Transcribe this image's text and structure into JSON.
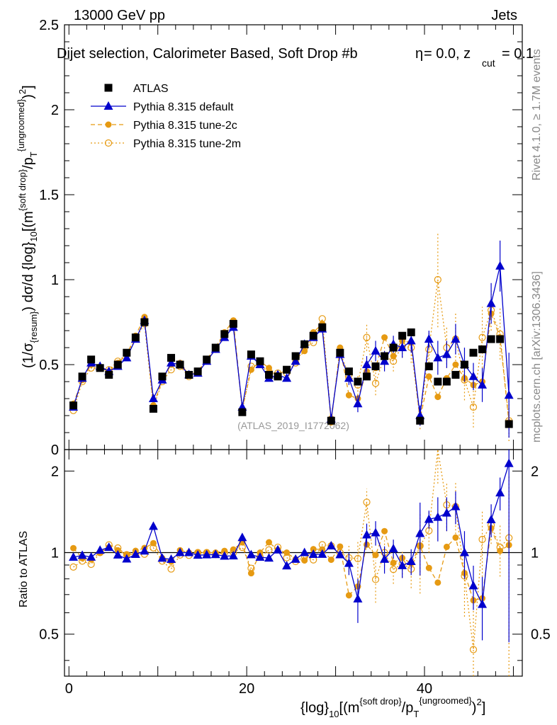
{
  "header": {
    "energy": "13000 GeV pp",
    "process": "Jets",
    "selection": "Dijet selection, Calorimeter Based, Soft Drop #b",
    "params_beta": "= 0.0, z",
    "params_sub": "cut",
    "params_val": "= 0.1",
    "beta_symbol": "η"
  },
  "side_labels": {
    "rivet": "Rivet 4.1.0, ≥ 1.7M events",
    "mcplots": "mcplots.cern.ch [arXiv:1306.3436]"
  },
  "watermark": "(ATLAS_2019_I1772062)",
  "axes": {
    "main_ylabel": "(1/σ{resum}) dσ/d {log}10[(m{soft drop}/pT{ungroomed})²]",
    "ratio_ylabel": "Ratio to ATLAS",
    "xlabel": "{log}10[(m{soft drop}/pT{ungroomed})²]",
    "main_yticks": [
      "0",
      "0.5",
      "1",
      "1.5",
      "2",
      "2.5"
    ],
    "ratio_yticks": [
      "0.5",
      "1",
      "2"
    ],
    "xticks": [
      "0",
      "20",
      "40"
    ]
  },
  "legend": [
    {
      "label": "ATLAS",
      "marker": "square",
      "color": "#000000"
    },
    {
      "label": "Pythia 8.315 default",
      "marker": "triangle",
      "color": "#0000cc"
    },
    {
      "label": "Pythia 8.315 tune-2c",
      "marker": "filled-circle",
      "color": "#e69a12"
    },
    {
      "label": "Pythia 8.315 tune-2m",
      "marker": "open-circle",
      "color": "#e69a12"
    }
  ],
  "chart_data": {
    "type": "scatter",
    "title": "Dijet selection, Calorimeter Based, Soft Drop",
    "xlim": [
      -0.5,
      51
    ],
    "ylim_main": [
      0,
      2.5
    ],
    "ylim_ratio": [
      0.35,
      2.4
    ],
    "x": [
      0.5,
      1.5,
      2.5,
      3.5,
      4.5,
      5.5,
      6.5,
      7.5,
      8.5,
      9.5,
      10.5,
      11.5,
      12.5,
      13.5,
      14.5,
      15.5,
      16.5,
      17.5,
      18.5,
      19.5,
      20.5,
      21.5,
      22.5,
      23.5,
      24.5,
      25.5,
      26.5,
      27.5,
      28.5,
      29.5,
      30.5,
      31.5,
      32.5,
      33.5,
      34.5,
      35.5,
      36.5,
      37.5,
      38.5,
      39.5,
      40.5,
      41.5,
      42.5,
      43.5,
      44.5,
      45.5,
      46.5,
      47.5,
      48.5,
      49.5
    ],
    "series": [
      {
        "name": "ATLAS",
        "values": [
          0.26,
          0.43,
          0.53,
          0.48,
          0.44,
          0.5,
          0.57,
          0.66,
          0.75,
          0.24,
          0.43,
          0.54,
          0.5,
          0.44,
          0.46,
          0.53,
          0.6,
          0.68,
          0.74,
          0.22,
          0.56,
          0.52,
          0.44,
          0.43,
          0.47,
          0.55,
          0.62,
          0.67,
          0.72,
          0.17,
          0.57,
          0.46,
          0.4,
          0.43,
          0.49,
          0.55,
          0.6,
          0.67,
          0.69,
          0.17,
          0.49,
          0.4,
          0.4,
          0.44,
          0.5,
          0.57,
          0.59,
          0.65,
          0.65,
          0.15
        ]
      },
      {
        "name": "Pythia 8.315 default",
        "values": [
          0.25,
          0.42,
          0.51,
          0.49,
          0.46,
          0.49,
          0.54,
          0.65,
          0.76,
          0.3,
          0.41,
          0.51,
          0.5,
          0.44,
          0.45,
          0.52,
          0.59,
          0.66,
          0.72,
          0.25,
          0.55,
          0.5,
          0.42,
          0.44,
          0.42,
          0.52,
          0.62,
          0.66,
          0.71,
          0.18,
          0.56,
          0.42,
          0.27,
          0.5,
          0.58,
          0.52,
          0.62,
          0.6,
          0.64,
          0.2,
          0.65,
          0.54,
          0.56,
          0.65,
          0.5,
          0.43,
          0.38,
          0.86,
          1.08,
          0.32
        ]
      },
      {
        "name": "Pythia 8.315 tune-2c",
        "values": [
          0.27,
          0.41,
          0.5,
          0.48,
          0.46,
          0.51,
          0.56,
          0.67,
          0.78,
          0.26,
          0.41,
          0.5,
          0.51,
          0.44,
          0.46,
          0.53,
          0.6,
          0.69,
          0.76,
          0.24,
          0.47,
          0.52,
          0.48,
          0.44,
          0.47,
          0.52,
          0.58,
          0.69,
          0.74,
          0.16,
          0.6,
          0.32,
          0.3,
          0.46,
          0.48,
          0.66,
          0.55,
          0.64,
          0.63,
          0.18,
          0.43,
          0.31,
          0.42,
          0.5,
          0.42,
          0.38,
          0.4,
          0.8,
          0.66,
          0.16
        ]
      },
      {
        "name": "Pythia 8.315 tune-2m",
        "values": [
          0.23,
          0.4,
          0.48,
          0.48,
          0.47,
          0.52,
          0.56,
          0.65,
          0.74,
          0.25,
          0.4,
          0.47,
          0.49,
          0.43,
          0.46,
          0.53,
          0.59,
          0.68,
          0.74,
          0.23,
          0.49,
          0.5,
          0.45,
          0.45,
          0.45,
          0.51,
          0.6,
          0.63,
          0.77,
          0.18,
          0.57,
          0.44,
          0.38,
          0.66,
          0.39,
          0.55,
          0.52,
          0.61,
          0.6,
          0.18,
          0.59,
          1.0,
          0.6,
          0.65,
          0.41,
          0.25,
          0.66,
          0.82,
          0.68,
          0.17
        ]
      }
    ],
    "errors": [
      {
        "name": "Pythia 8.315 default",
        "indices": [
          31,
          32,
          33,
          34,
          35,
          36,
          37,
          38,
          39,
          40,
          41,
          42,
          43,
          44,
          45,
          46,
          47,
          48,
          49
        ],
        "values": [
          0.04,
          0.05,
          0.05,
          0.06,
          0.06,
          0.05,
          0.06,
          0.07,
          0.06,
          0.05,
          0.1,
          0.08,
          0.09,
          0.1,
          0.08,
          0.1,
          0.12,
          0.15,
          0.25
        ]
      },
      {
        "name": "Pythia 8.315 tune-2m",
        "indices": [
          31,
          32,
          33,
          34,
          35,
          36,
          37,
          38,
          39,
          40,
          41,
          42,
          43,
          44,
          45,
          46,
          47,
          48,
          49
        ],
        "values": [
          0.05,
          0.06,
          0.08,
          0.07,
          0.06,
          0.06,
          0.07,
          0.09,
          0.06,
          0.1,
          0.28,
          0.12,
          0.15,
          0.12,
          0.12,
          0.18,
          0.12,
          0.15,
          0.12
        ]
      }
    ],
    "xlabel": "{log}10[(m{soft drop}/pT{ungroomed})²]",
    "ylabel": "(1/σ{resum}) dσ/d {log}10[(m{soft drop}/pT{ungroomed})²]",
    "ratio_ylabel": "Ratio to ATLAS"
  }
}
